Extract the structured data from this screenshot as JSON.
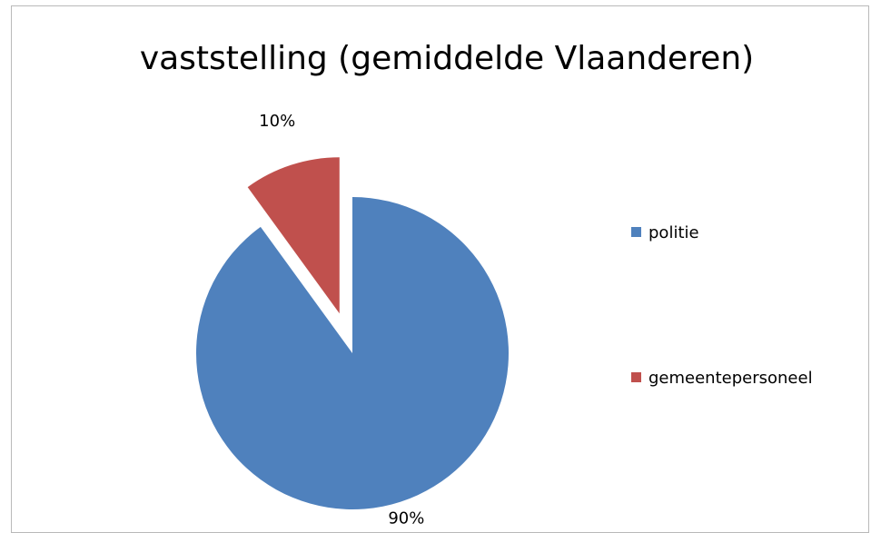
{
  "chart_data": {
    "type": "pie",
    "title": "vaststelling (gemiddelde Vlaanderen)",
    "categories": [
      "politie",
      "gemeentepersoneel"
    ],
    "values": [
      90,
      10
    ],
    "labels": [
      "90%",
      "10%"
    ],
    "colors": [
      "#4F81BD",
      "#C0504D"
    ],
    "exploded": [
      false,
      true
    ],
    "legend_position": "right"
  }
}
